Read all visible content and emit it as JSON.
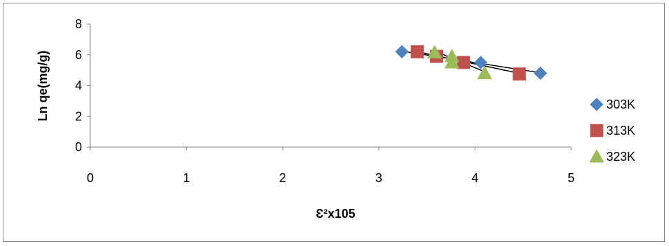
{
  "chart_data": {
    "type": "scatter",
    "title": "",
    "xlabel": "Ɛ²x105",
    "ylabel": "Ln qe(mg/g)",
    "xlim": [
      0,
      5
    ],
    "ylim": [
      0,
      8
    ],
    "xticks": [
      0,
      1,
      2,
      3,
      4,
      5
    ],
    "yticks": [
      0,
      2,
      4,
      6,
      8
    ],
    "grid": false,
    "legend_position": "right",
    "trendlines": true,
    "series": [
      {
        "name": "303K",
        "marker": "diamond",
        "color": "#4F81BD",
        "x": [
          3.24,
          4.06,
          4.68
        ],
        "y": [
          6.2,
          5.5,
          4.8
        ],
        "fit": {
          "x": [
            3.24,
            4.68
          ],
          "y": [
            6.24,
            4.83
          ]
        }
      },
      {
        "name": "313K",
        "marker": "square",
        "color": "#C0504D",
        "x": [
          3.4,
          3.6,
          3.88,
          4.46
        ],
        "y": [
          6.2,
          5.9,
          5.5,
          4.75
        ],
        "fit": {
          "x": [
            3.4,
            4.46
          ],
          "y": [
            6.2,
            4.8
          ]
        }
      },
      {
        "name": "323K",
        "marker": "triangle",
        "color": "#9BBB59",
        "x": [
          3.58,
          3.76,
          3.76,
          4.1
        ],
        "y": [
          6.15,
          5.9,
          5.5,
          4.8
        ],
        "fit": {
          "x": [
            3.58,
            4.1
          ],
          "y": [
            6.25,
            4.9
          ]
        }
      }
    ]
  }
}
